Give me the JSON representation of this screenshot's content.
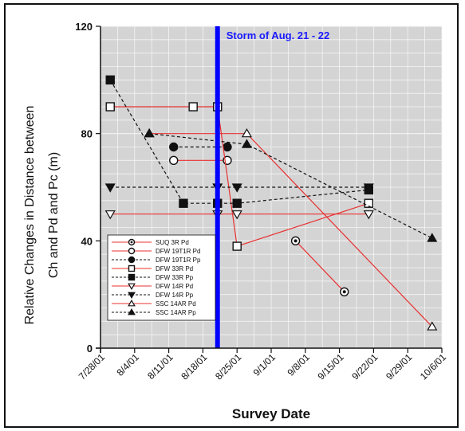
{
  "chart_data": {
    "type": "line",
    "title": "",
    "xlabel": "Survey Date",
    "ylabel_line1": "Relative Changes in Distance between",
    "ylabel_line2": "Ch and Pd and Pc (m)",
    "xlim": [
      "2001-07-28",
      "2001-10-06"
    ],
    "ylim": [
      0,
      120
    ],
    "x_ticks": [
      "7/28/01",
      "8/4/01",
      "8/11/01",
      "8/18/01",
      "8/25/01",
      "9/1/01",
      "9/8/01",
      "9/15/01",
      "9/22/01",
      "9/29/01",
      "10/6/01"
    ],
    "y_ticks": [
      0,
      40,
      80,
      120
    ],
    "grid": true,
    "legend_position": "bottom-left",
    "annotations": [
      {
        "type": "vline",
        "x": "2001-08-21",
        "color": "#0000ff",
        "label": "Storm of  Aug. 21 - 22"
      }
    ],
    "series": [
      {
        "name": "SUQ 3R Pd",
        "color": "#e83030",
        "dash": "solid",
        "marker": "circle-dot",
        "points": [
          [
            "2001-09-06",
            40
          ],
          [
            "2001-09-16",
            21
          ]
        ]
      },
      {
        "name": "DFW 19T1R Pd",
        "color": "#e83030",
        "dash": "solid",
        "marker": "circle-open",
        "points": [
          [
            "2001-08-12",
            70
          ],
          [
            "2001-08-23",
            70
          ]
        ]
      },
      {
        "name": "DFW 19T1R Pp",
        "color": "#111111",
        "dash": "dashed",
        "marker": "circle-filled",
        "points": [
          [
            "2001-08-12",
            75
          ],
          [
            "2001-08-23",
            75
          ]
        ]
      },
      {
        "name": "DFW 33R Pd",
        "color": "#e83030",
        "dash": "solid",
        "marker": "square-open",
        "points": [
          [
            "2001-07-30",
            90
          ],
          [
            "2001-08-16",
            90
          ],
          [
            "2001-08-21",
            90
          ],
          [
            "2001-08-25",
            38
          ],
          [
            "2001-09-21",
            54
          ]
        ]
      },
      {
        "name": "DFW 33R Pp",
        "color": "#111111",
        "dash": "dashed",
        "marker": "square-filled",
        "points": [
          [
            "2001-07-30",
            100
          ],
          [
            "2001-08-14",
            54
          ],
          [
            "2001-08-21",
            54
          ],
          [
            "2001-08-25",
            54
          ],
          [
            "2001-09-21",
            59
          ]
        ]
      },
      {
        "name": "DFW 14R Pd",
        "color": "#e83030",
        "dash": "solid",
        "marker": "triangle-down-open",
        "points": [
          [
            "2001-07-30",
            50
          ],
          [
            "2001-08-21",
            50
          ],
          [
            "2001-08-25",
            50
          ],
          [
            "2001-09-21",
            50
          ]
        ]
      },
      {
        "name": "DFW 14R Pp",
        "color": "#111111",
        "dash": "dashed",
        "marker": "triangle-down-filled",
        "points": [
          [
            "2001-07-30",
            60
          ],
          [
            "2001-08-21",
            60
          ],
          [
            "2001-08-25",
            60
          ],
          [
            "2001-09-21",
            60
          ]
        ]
      },
      {
        "name": "SSC 14AR Pd",
        "color": "#e83030",
        "dash": "solid",
        "marker": "triangle-up-open",
        "points": [
          [
            "2001-08-07",
            80
          ],
          [
            "2001-08-27",
            80
          ],
          [
            "2001-10-04",
            8
          ]
        ]
      },
      {
        "name": "SSC 14AR Pp",
        "color": "#111111",
        "dash": "dashed",
        "marker": "triangle-up-filled",
        "points": [
          [
            "2001-08-07",
            80
          ],
          [
            "2001-08-27",
            76
          ],
          [
            "2001-10-04",
            41
          ]
        ]
      }
    ]
  }
}
